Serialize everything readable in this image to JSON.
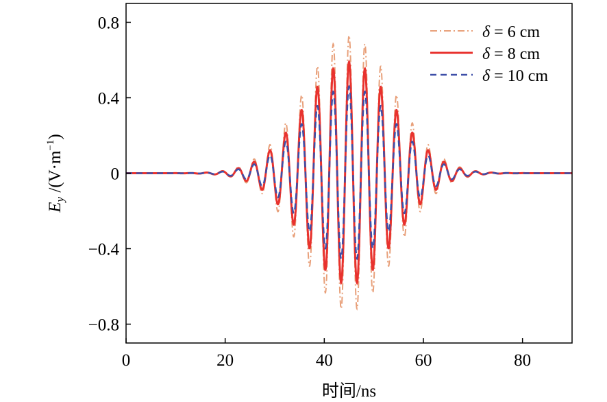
{
  "chart_data": {
    "type": "line",
    "xlabel": "时间/ns",
    "ylabel_main": "E",
    "ylabel_sub": "y",
    "ylabel_unit_prefix": " /(V·m",
    "ylabel_unit_exp": "−1",
    "ylabel_unit_suffix": ")",
    "xlim": [
      0,
      90
    ],
    "ylim": [
      -0.9,
      0.9
    ],
    "xticks": [
      0,
      20,
      40,
      60,
      80
    ],
    "xtick_labels": [
      "0",
      "20",
      "40",
      "60",
      "80"
    ],
    "yticks": [
      0.8,
      0.4,
      0,
      -0.4,
      -0.8
    ],
    "ytick_labels": [
      "0.8",
      "0.4",
      "0",
      "−0.4",
      "−0.8"
    ],
    "grid": false,
    "legend_position": "top-right",
    "signal": {
      "period_ns": 3.2,
      "center_ns": 45.0,
      "sigma_ns": 9.0
    },
    "series": [
      {
        "name_prefix": "δ",
        "name_suffix": " = 6 cm",
        "peak": 0.73,
        "color": "#E8A07A",
        "style": "dashdot",
        "linewidth": 2
      },
      {
        "name_prefix": "δ",
        "name_suffix": " = 8 cm",
        "peak": 0.59,
        "color": "#E8322E",
        "style": "solid",
        "linewidth": 3
      },
      {
        "name_prefix": "δ",
        "name_suffix": " = 10 cm",
        "peak": 0.46,
        "color": "#3D4FA8",
        "style": "dashed",
        "linewidth": 2.5
      }
    ]
  }
}
